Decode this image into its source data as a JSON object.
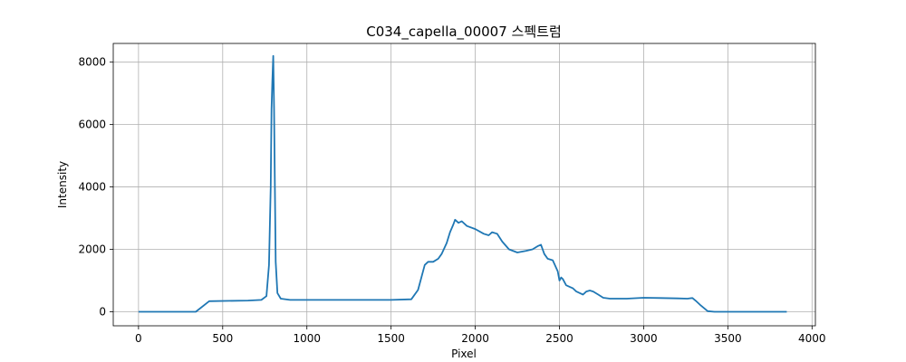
{
  "chart_data": {
    "type": "line",
    "title": "C034_capella_00007 스펙트럼",
    "xlabel": "Pixel",
    "ylabel": "Intensity",
    "xlim": [
      -150,
      4020
    ],
    "ylim": [
      -450,
      8600
    ],
    "grid": true,
    "xticks": [
      0,
      500,
      1000,
      1500,
      2000,
      2500,
      3000,
      3500,
      4000
    ],
    "yticks": [
      0,
      2000,
      4000,
      6000,
      8000
    ],
    "series": [
      {
        "color": "#1f77b4",
        "x": [
          0,
          340,
          420,
          650,
          730,
          760,
          775,
          785,
          790,
          795,
          800,
          805,
          810,
          815,
          825,
          845,
          900,
          1200,
          1500,
          1620,
          1660,
          1680,
          1700,
          1720,
          1750,
          1780,
          1800,
          1830,
          1850,
          1870,
          1880,
          1900,
          1920,
          1950,
          2000,
          2050,
          2080,
          2100,
          2130,
          2160,
          2200,
          2250,
          2300,
          2340,
          2370,
          2390,
          2410,
          2430,
          2460,
          2490,
          2500,
          2510,
          2520,
          2540,
          2560,
          2580,
          2600,
          2620,
          2640,
          2660,
          2680,
          2700,
          2730,
          2760,
          2800,
          2900,
          3000,
          3100,
          3200,
          3260,
          3290,
          3310,
          3340,
          3380,
          3420,
          3600,
          3850
        ],
        "y": [
          0,
          0,
          340,
          360,
          380,
          500,
          1500,
          4000,
          6500,
          7400,
          8200,
          6500,
          4000,
          1600,
          600,
          420,
          380,
          380,
          380,
          400,
          700,
          1100,
          1500,
          1600,
          1600,
          1700,
          1850,
          2200,
          2550,
          2800,
          2950,
          2850,
          2900,
          2750,
          2650,
          2500,
          2450,
          2550,
          2500,
          2250,
          2000,
          1900,
          1950,
          2000,
          2100,
          2150,
          1850,
          1700,
          1650,
          1300,
          1000,
          1100,
          1050,
          850,
          800,
          750,
          650,
          600,
          550,
          650,
          680,
          650,
          550,
          450,
          420,
          420,
          450,
          440,
          430,
          420,
          440,
          350,
          200,
          20,
          0,
          0,
          0
        ]
      }
    ]
  }
}
